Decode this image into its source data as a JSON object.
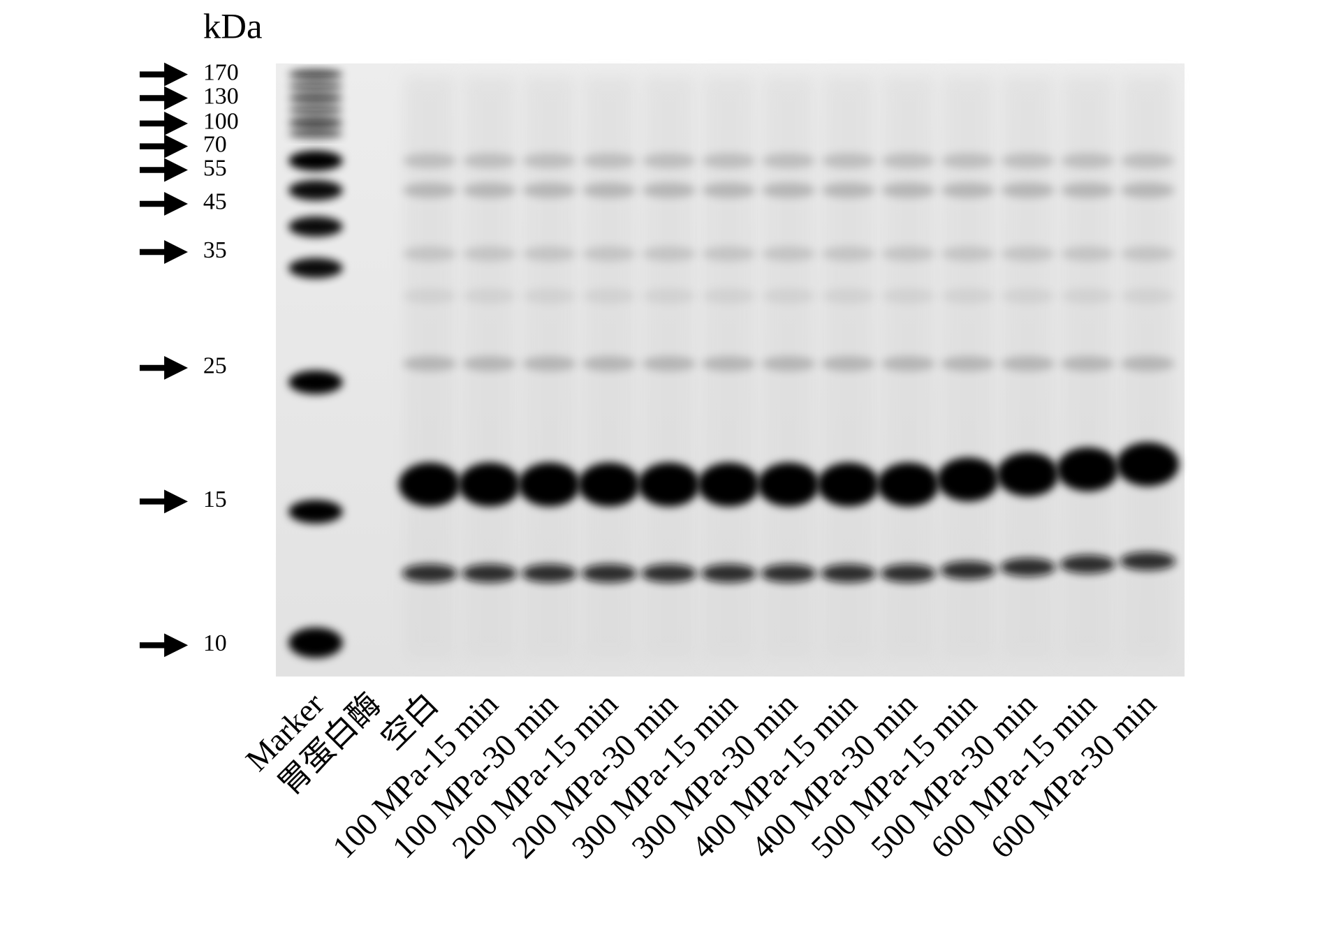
{
  "axis_unit": "kDa",
  "markers": [
    170,
    130,
    100,
    70,
    55,
    45,
    35,
    25,
    15,
    10
  ],
  "lanes": [
    "Marker",
    "胃蛋白酶",
    "空白",
    "100 MPa-15 min",
    "100 MPa-30 min",
    "200 MPa-15 min",
    "200 MPa-30 min",
    "300 MPa-15 min",
    "300 MPa-30 min",
    "400 MPa-15 min",
    "400 MPa-30 min",
    "500 MPa-15 min",
    "500 MPa-30 min",
    "600 MPa-15 min",
    "600 MPa-30 min"
  ]
}
